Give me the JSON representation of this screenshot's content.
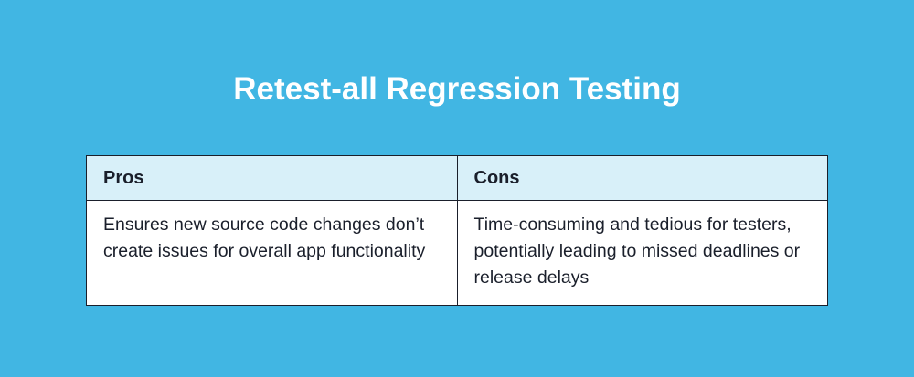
{
  "title": "Retest-all Regression Testing",
  "table": {
    "headers": [
      "Pros",
      "Cons"
    ],
    "rows": [
      [
        "Ensures new source code changes don’t create issues for overall app functionality",
        "Time-consuming and tedious for testers, potentially leading to missed deadlines or release delays"
      ]
    ]
  },
  "colors": {
    "background": "#41b6e3",
    "header_bg": "#d8f0f9",
    "border": "#1a1f2b"
  }
}
